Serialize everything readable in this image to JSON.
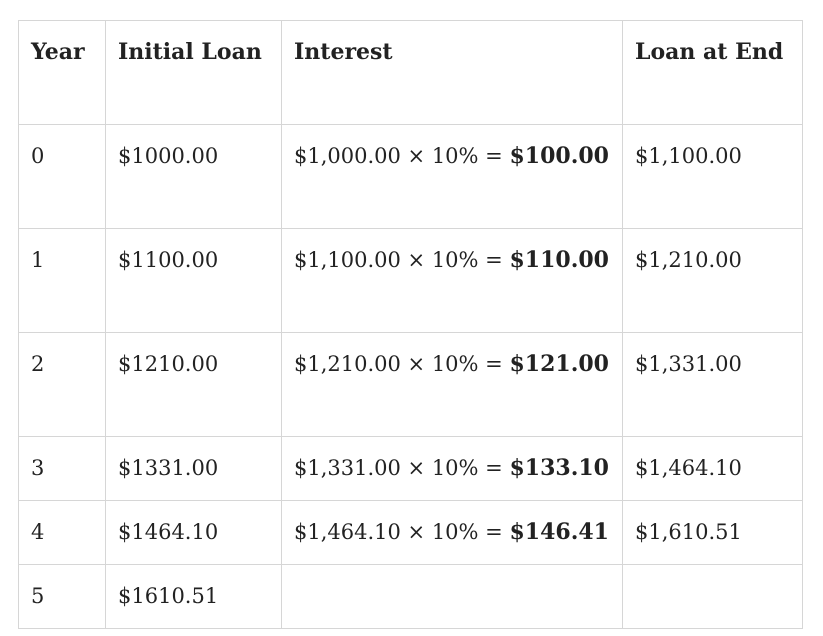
{
  "table": {
    "headers": [
      "Year",
      "Initial Loan",
      "Interest",
      "Loan at End"
    ],
    "rows": [
      {
        "year": "0",
        "initial": "$1000.00",
        "expr": "$1,000.00 × 10% =",
        "result": "$100.00",
        "end": "$1,100.00"
      },
      {
        "year": "1",
        "initial": "$1100.00",
        "expr": "$1,100.00 × 10% =",
        "result": "$110.00",
        "end": "$1,210.00"
      },
      {
        "year": "2",
        "initial": "$1210.00",
        "expr": "$1,210.00 × 10% =",
        "result": "$121.00",
        "end": "$1,331.00"
      },
      {
        "year": "3",
        "initial": "$1331.00",
        "expr": "$1,331.00 × 10% =",
        "result": "$133.10",
        "end": "$1,464.10"
      },
      {
        "year": "4",
        "initial": "$1464.10",
        "expr": "$1,464.10 × 10% =",
        "result": "$146.41",
        "end": "$1,610.51"
      },
      {
        "year": "5",
        "initial": "$1610.51",
        "expr": "",
        "result": "",
        "end": ""
      }
    ]
  }
}
